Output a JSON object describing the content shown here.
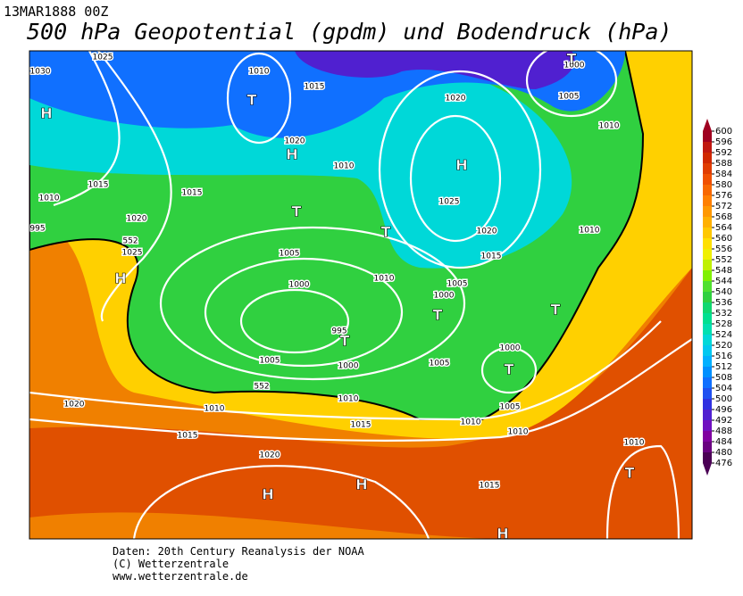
{
  "header": {
    "date": "13MAR1888 00Z",
    "title": "500 hPa Geopotential (gpdm) und Bodendruck (hPa)"
  },
  "colorbar": {
    "ticks": [
      600,
      596,
      592,
      588,
      584,
      580,
      576,
      572,
      568,
      564,
      560,
      556,
      552,
      548,
      544,
      540,
      536,
      532,
      528,
      524,
      520,
      516,
      512,
      508,
      504,
      500,
      496,
      492,
      488,
      484,
      480,
      476
    ],
    "colors": [
      "#a00020",
      "#c01810",
      "#d02800",
      "#e03c00",
      "#f05000",
      "#f86800",
      "#ff8000",
      "#ff9800",
      "#ffb000",
      "#ffc800",
      "#ffe000",
      "#f0f000",
      "#c0f000",
      "#80f000",
      "#50e030",
      "#30d040",
      "#10d870",
      "#00e090",
      "#00e0b0",
      "#00d8d8",
      "#00c8f0",
      "#00b0ff",
      "#0090ff",
      "#1070ff",
      "#2050f0",
      "#3030e0",
      "#5020d0",
      "#7010c0",
      "#8000a0",
      "#6a0080",
      "#4b0055"
    ]
  },
  "isobar_labels": [
    1030,
    1025,
    1010,
    1015,
    1020,
    1010,
    1015,
    1015,
    1010,
    1020,
    995,
    1025,
    1005,
    1000,
    995,
    1005,
    1000,
    1010,
    1005,
    1000,
    1005,
    1020,
    1025,
    1020,
    1015,
    1010,
    1000,
    1005,
    1010,
    1000,
    1005,
    1010,
    1010,
    1010,
    1015,
    1010,
    1020,
    1015,
    1020,
    1015,
    1010,
    552,
    552
  ],
  "centers": [
    "H",
    "T",
    "H",
    "H",
    "T",
    "T",
    "H",
    "T",
    "T",
    "T",
    "T",
    "T",
    "H",
    "H",
    "T",
    "H"
  ],
  "footer": [
    "Daten: 20th Century Reanalysis der NOAA",
    "(C) Wetterzentrale",
    "www.wetterzentrale.de"
  ]
}
